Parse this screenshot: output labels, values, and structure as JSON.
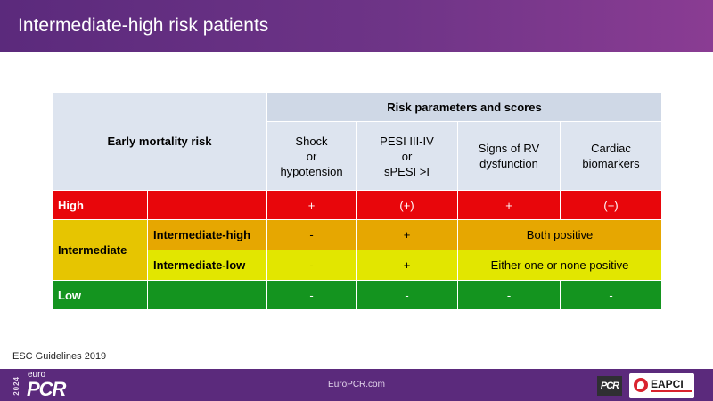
{
  "slide_title": "Intermediate-high risk patients",
  "table": {
    "early_mortality_header": "Early mortality risk",
    "params_header": "Risk parameters and scores",
    "columns": [
      "Shock\nor\nhypotension",
      "PESI III-IV\nor\nsPESI >I",
      "Signs of RV\ndysfunction",
      "Cardiac\nbiomarkers"
    ],
    "rows": {
      "high": {
        "label": "High",
        "values": [
          "+",
          "(+)",
          "+",
          "(+)"
        ]
      },
      "intermediate": {
        "label": "Intermediate",
        "sub_high": {
          "label": "Intermediate-high",
          "shock": "-",
          "pesi": "+",
          "combined": "Both positive"
        },
        "sub_low": {
          "label": "Intermediate-low",
          "shock": "-",
          "pesi": "+",
          "combined": "Either one or none positive"
        }
      },
      "low": {
        "label": "Low",
        "values": [
          "-",
          "-",
          "-",
          "-"
        ]
      }
    }
  },
  "source": "ESC Guidelines 2019",
  "footer": {
    "year": "2024",
    "logo_euro": "euro",
    "logo_pcr": "PCR",
    "website": "EuroPCR.com",
    "badge_pcr": "PCR",
    "badge_eapci": "EAPCI"
  }
}
